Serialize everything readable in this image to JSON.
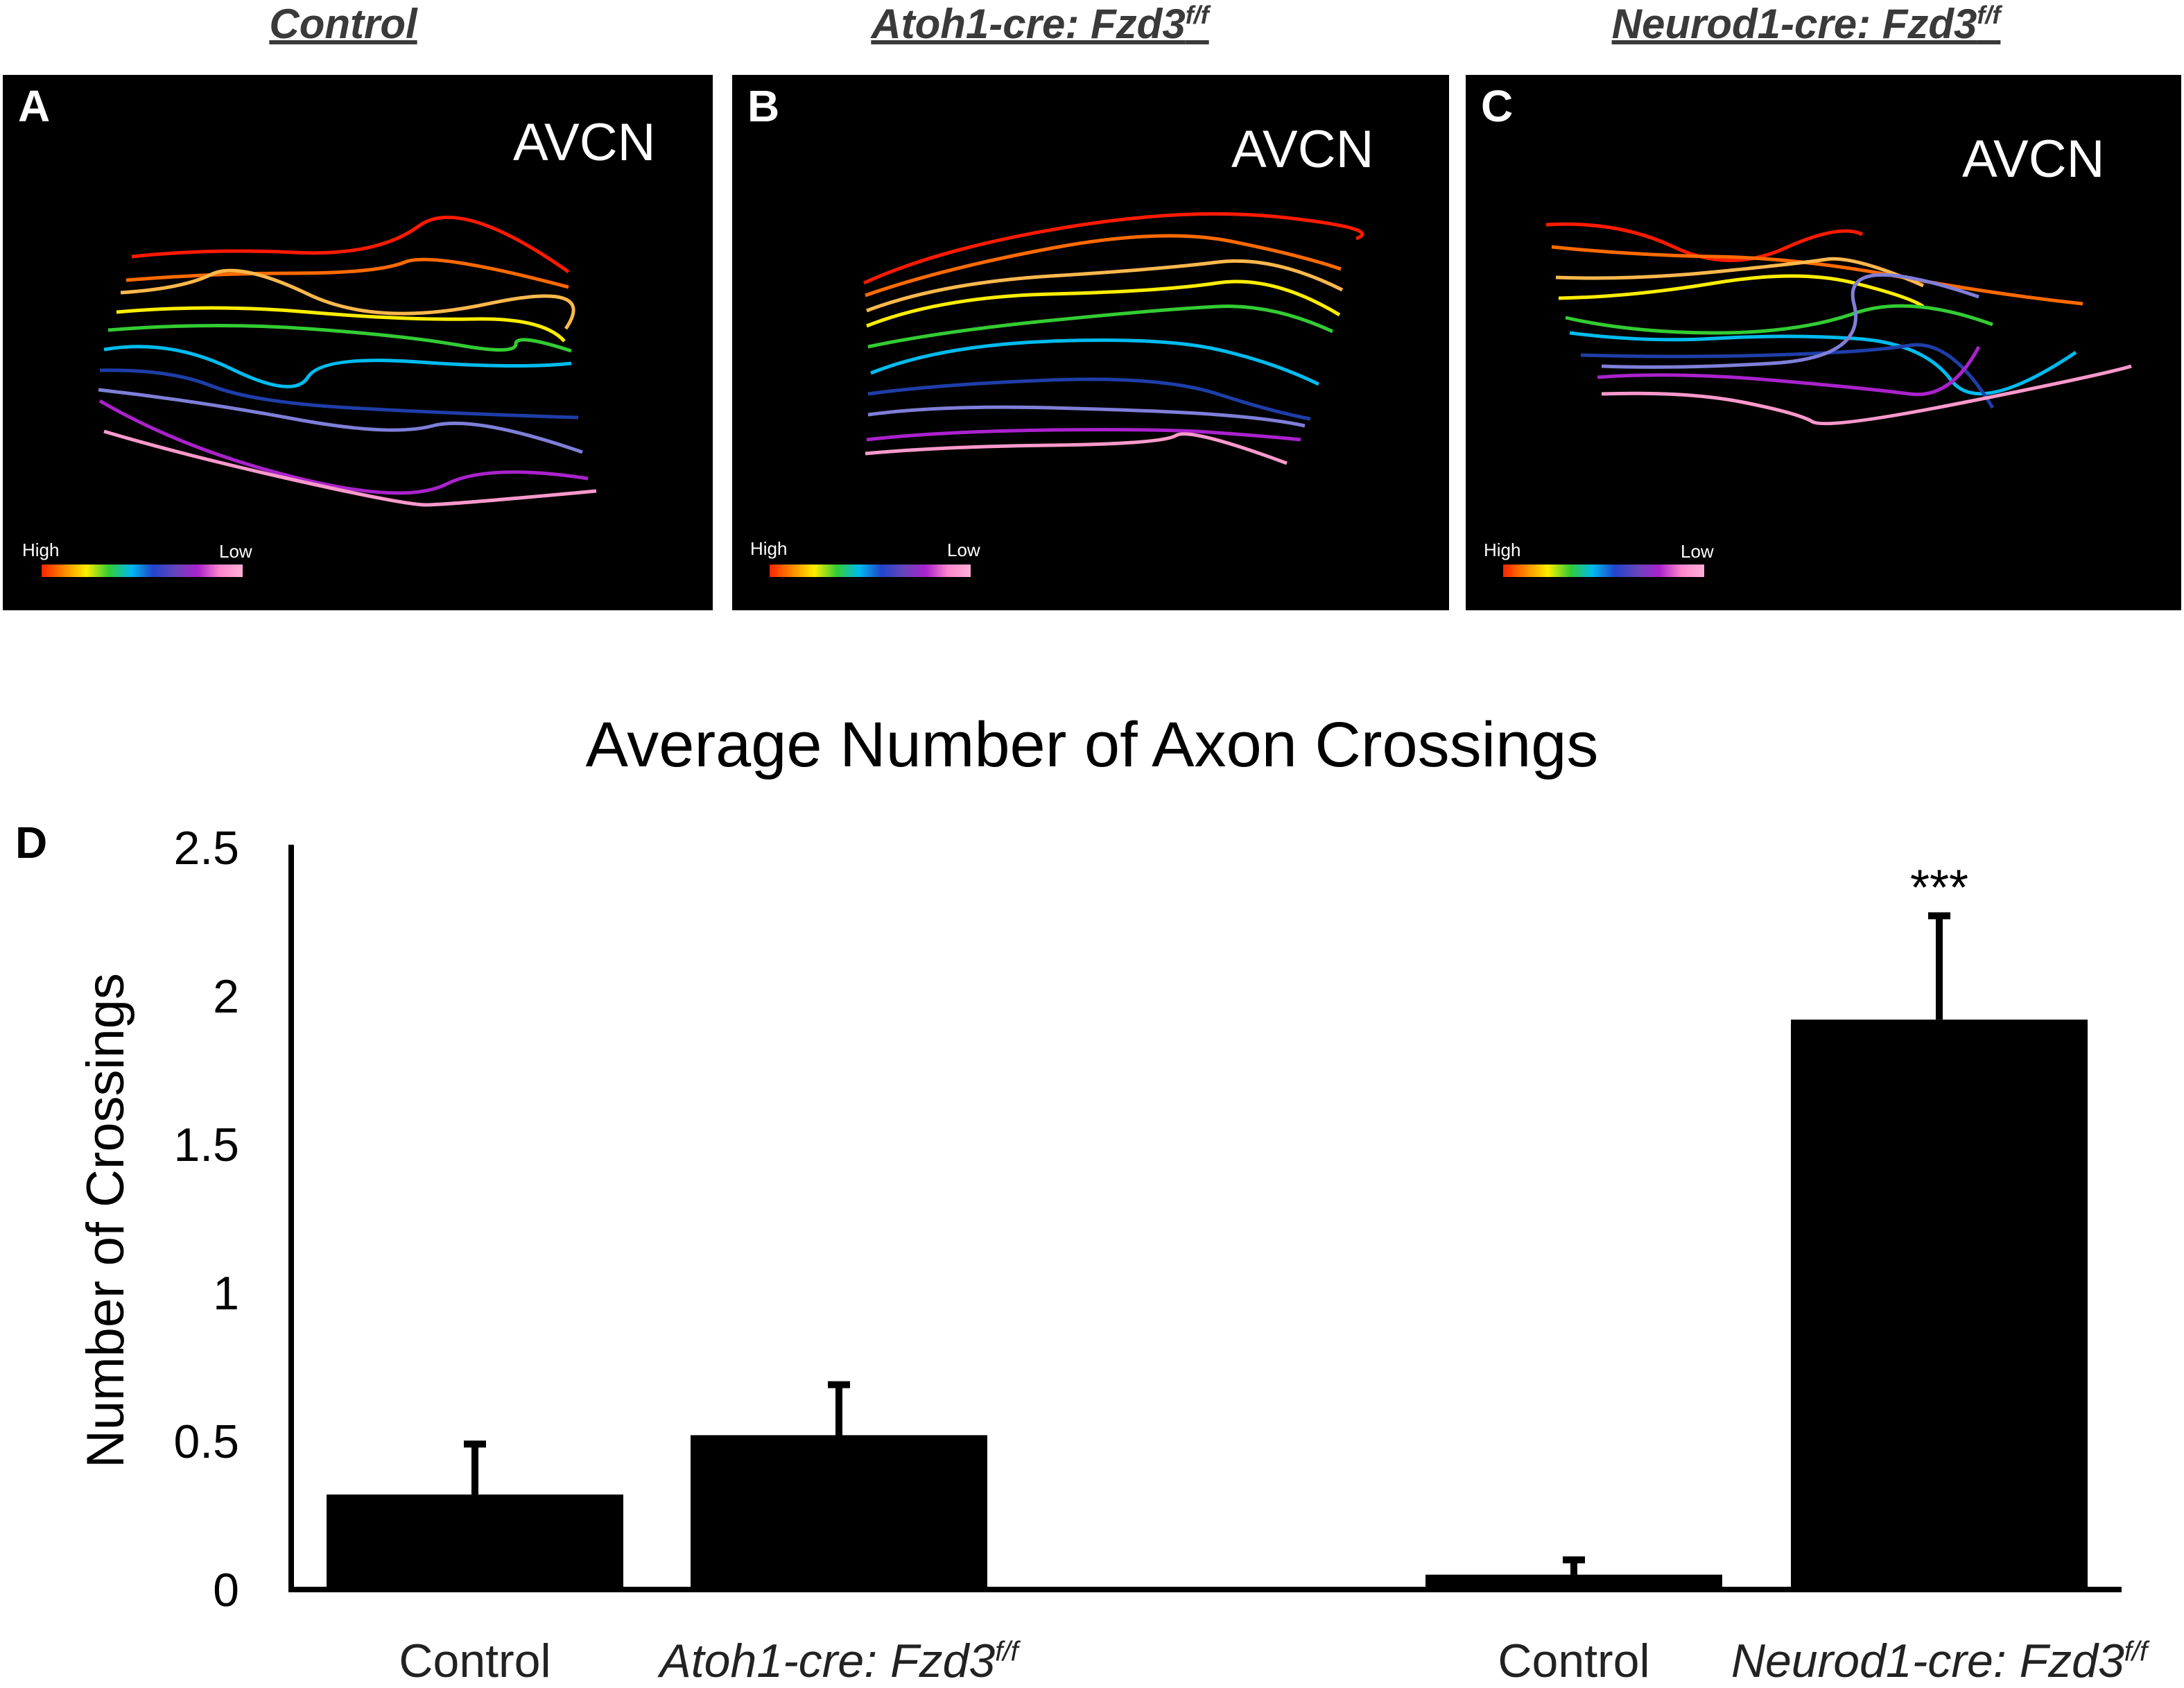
{
  "panels": [
    {
      "letter": "A",
      "column_title": "Control",
      "column_sup": "",
      "region": "AVCN",
      "legend_high": "High",
      "legend_low": "Low"
    },
    {
      "letter": "B",
      "column_title": "Atoh1-cre: Fzd3",
      "column_sup": "f/f",
      "region": "AVCN",
      "legend_high": "High",
      "legend_low": "Low"
    },
    {
      "letter": "C",
      "column_title": "Neurod1-cre: Fzd3",
      "column_sup": "f/f",
      "region": "AVCN",
      "legend_high": "High",
      "legend_low": "Low"
    }
  ],
  "tonotopy_colors": [
    "#ff1a00",
    "#ff6a00",
    "#ffb84d",
    "#ffee00",
    "#33cc33",
    "#00bbee",
    "#1e3ea8",
    "#7f7fd9",
    "#aa22cc",
    "#ff99cc"
  ],
  "panel_d_letter": "D",
  "chart_data": {
    "type": "bar",
    "title": "Average Number of Axon Crossings",
    "ylabel": "Number of Crossings",
    "xlabel": "",
    "ylim": [
      0,
      2.5
    ],
    "yticks": [
      "0",
      "0.5",
      "1",
      "1.5",
      "2",
      "2.5"
    ],
    "categories": [
      {
        "label": "Control",
        "sup": "",
        "italic": false
      },
      {
        "label": "Atoh1-cre: Fzd3",
        "sup": "f/f",
        "italic": true
      },
      {
        "label": "Control",
        "sup": "",
        "italic": false
      },
      {
        "label": "Neurod1-cre: Fzd3",
        "sup": "f/f",
        "italic": true
      }
    ],
    "values": [
      0.32,
      0.52,
      0.05,
      1.92
    ],
    "errors": [
      0.17,
      0.17,
      0.05,
      0.35
    ],
    "significance": [
      "",
      "",
      "",
      "***"
    ],
    "bar_color": "#000000"
  }
}
